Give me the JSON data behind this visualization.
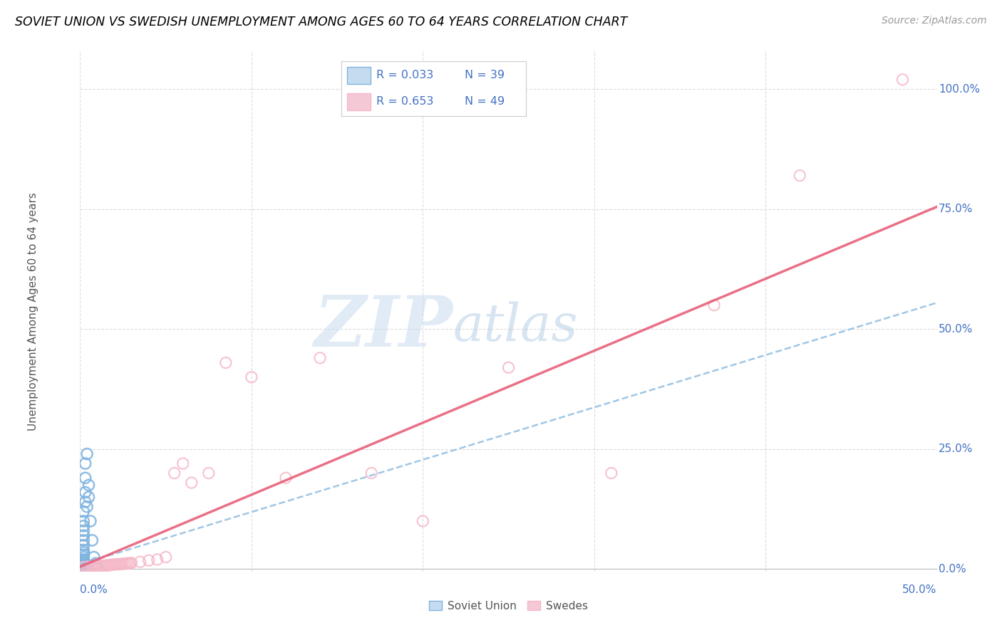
{
  "title": "SOVIET UNION VS SWEDISH UNEMPLOYMENT AMONG AGES 60 TO 64 YEARS CORRELATION CHART",
  "source": "Source: ZipAtlas.com",
  "ylabel": "Unemployment Among Ages 60 to 64 years",
  "xlim": [
    0.0,
    0.5
  ],
  "ylim": [
    -0.005,
    1.08
  ],
  "yticks": [
    0.0,
    0.25,
    0.5,
    0.75,
    1.0
  ],
  "ytick_labels": [
    "0.0%",
    "25.0%",
    "50.0%",
    "75.0%",
    "100.0%"
  ],
  "xtick_left": "0.0%",
  "xtick_right": "50.0%",
  "legend_r1": "R = 0.033",
  "legend_n1": "N = 39",
  "legend_r2": "R = 0.653",
  "legend_n2": "N = 49",
  "legend_label1": "Soviet Union",
  "legend_label2": "Swedes",
  "blue_scatter_color": "#7EB3E0",
  "pink_scatter_color": "#F5B8C8",
  "blue_trend_color": "#90BDE0",
  "pink_trend_color": "#E8607A",
  "grid_color": "#DDDDDD",
  "axis_label_color": "#4472C4",
  "watermark_color": "#C5D8EF",
  "soviet_x": [
    0.002,
    0.002,
    0.002,
    0.002,
    0.002,
    0.002,
    0.002,
    0.002,
    0.002,
    0.002,
    0.002,
    0.002,
    0.002,
    0.002,
    0.002,
    0.002,
    0.002,
    0.002,
    0.002,
    0.002,
    0.002,
    0.002,
    0.002,
    0.003,
    0.003,
    0.003,
    0.003,
    0.004,
    0.004,
    0.005,
    0.005,
    0.006,
    0.007,
    0.008,
    0.009,
    0.01,
    0.01,
    0.01,
    0.01
  ],
  "soviet_y": [
    0.001,
    0.002,
    0.003,
    0.004,
    0.005,
    0.006,
    0.008,
    0.01,
    0.012,
    0.015,
    0.018,
    0.02,
    0.025,
    0.03,
    0.035,
    0.04,
    0.05,
    0.06,
    0.07,
    0.08,
    0.09,
    0.1,
    0.12,
    0.14,
    0.16,
    0.19,
    0.22,
    0.24,
    0.13,
    0.15,
    0.175,
    0.1,
    0.06,
    0.025,
    0.012,
    0.005,
    0.002,
    0.001,
    0.001
  ],
  "swede_x": [
    0.001,
    0.002,
    0.003,
    0.004,
    0.005,
    0.006,
    0.007,
    0.008,
    0.009,
    0.01,
    0.011,
    0.012,
    0.013,
    0.014,
    0.015,
    0.016,
    0.017,
    0.018,
    0.019,
    0.02,
    0.021,
    0.022,
    0.023,
    0.024,
    0.025,
    0.026,
    0.027,
    0.028,
    0.029,
    0.03,
    0.035,
    0.04,
    0.045,
    0.05,
    0.055,
    0.06,
    0.065,
    0.075,
    0.085,
    0.1,
    0.12,
    0.14,
    0.17,
    0.2,
    0.25,
    0.31,
    0.37,
    0.42,
    0.48
  ],
  "swede_y": [
    0.003,
    0.004,
    0.004,
    0.005,
    0.004,
    0.005,
    0.004,
    0.005,
    0.005,
    0.006,
    0.006,
    0.007,
    0.007,
    0.007,
    0.008,
    0.008,
    0.008,
    0.009,
    0.009,
    0.01,
    0.01,
    0.01,
    0.01,
    0.011,
    0.011,
    0.011,
    0.012,
    0.012,
    0.012,
    0.013,
    0.015,
    0.018,
    0.02,
    0.025,
    0.2,
    0.22,
    0.18,
    0.2,
    0.43,
    0.4,
    0.19,
    0.44,
    0.2,
    0.1,
    0.42,
    0.2,
    0.55,
    0.82,
    1.02
  ],
  "soviet_trend_x": [
    0.0,
    0.5
  ],
  "soviet_trend_y": [
    0.01,
    0.555
  ],
  "swede_trend_x": [
    0.0,
    0.5
  ],
  "swede_trend_y": [
    0.005,
    0.755
  ]
}
